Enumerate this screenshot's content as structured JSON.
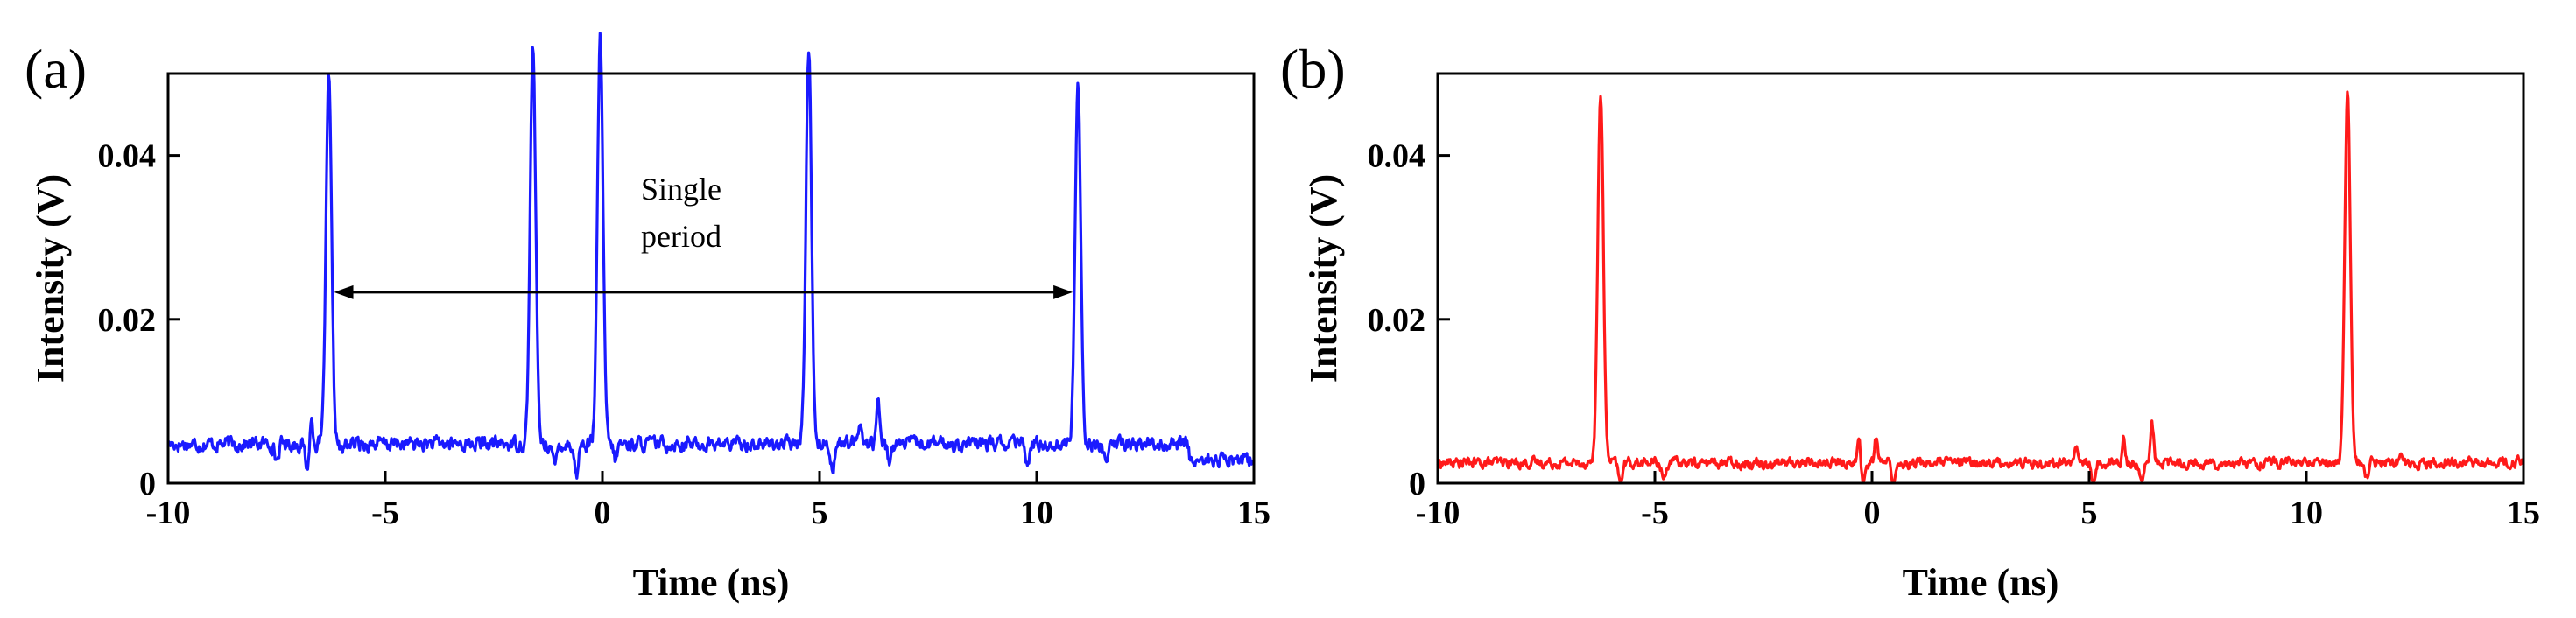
{
  "chart_data": [
    {
      "type": "line",
      "panel_label": "(a)",
      "xlabel": "Time (ns)",
      "ylabel": "Intensity (V)",
      "xlim": [
        -10,
        15
      ],
      "ylim": [
        0,
        0.05
      ],
      "xticks": [
        -10,
        -5,
        0,
        5,
        10,
        15
      ],
      "xtick_labels": [
        "-10",
        "-5",
        "0",
        "5",
        "10",
        "15"
      ],
      "yticks": [
        0,
        0.02,
        0.04
      ],
      "ytick_labels": [
        "0",
        "0.02",
        "0.04"
      ],
      "color": "#1a1aff",
      "baseline": 0.0048,
      "baseline_after": 13.5,
      "baseline_late": 0.0028,
      "noise": 0.0007,
      "peaks": [
        {
          "x": -6.3,
          "height": 0.0445,
          "width": 0.09
        },
        {
          "x": -1.6,
          "height": 0.0483,
          "width": 0.09
        },
        {
          "x": -0.05,
          "height": 0.0495,
          "width": 0.09
        },
        {
          "x": 4.75,
          "height": 0.0483,
          "width": 0.09
        },
        {
          "x": 10.95,
          "height": 0.0447,
          "width": 0.09
        }
      ],
      "dips": [
        {
          "x": -7.5,
          "depth": 0.002
        },
        {
          "x": -6.8,
          "depth": 0.003
        },
        {
          "x": -6.0,
          "depth": 0.001
        },
        {
          "x": -1.1,
          "depth": 0.003
        },
        {
          "x": -0.6,
          "depth": 0.004
        },
        {
          "x": 0.3,
          "depth": 0.002
        },
        {
          "x": 5.3,
          "depth": 0.003
        },
        {
          "x": 6.6,
          "depth": 0.002
        },
        {
          "x": 9.8,
          "depth": 0.0025
        },
        {
          "x": 11.6,
          "depth": 0.003
        }
      ],
      "bumps": [
        {
          "x": 6.35,
          "height": 0.0055
        },
        {
          "x": 5.95,
          "height": 0.003
        },
        {
          "x": -6.7,
          "height": 0.003
        }
      ],
      "annotation": {
        "text_line1": "Single",
        "text_line2": "period",
        "arrow_from_x": -6.3,
        "arrow_to_x": 10.95,
        "arrow_y": 0.0233
      }
    },
    {
      "type": "line",
      "panel_label": "(b)",
      "xlabel": "Time (ns)",
      "ylabel": "Intensity (V)",
      "xlim": [
        -10,
        15
      ],
      "ylim": [
        0,
        0.05
      ],
      "xticks": [
        -10,
        -5,
        0,
        5,
        10,
        15
      ],
      "xtick_labels": [
        "-10",
        "-5",
        "0",
        "5",
        "10",
        "15"
      ],
      "yticks": [
        0,
        0.02,
        0.04
      ],
      "ytick_labels": [
        "0",
        "0.02",
        "0.04"
      ],
      "color": "#ff1a1a",
      "baseline": 0.0025,
      "baseline_after": 99,
      "baseline_late": 0.0025,
      "noise": 0.0005,
      "peaks": [
        {
          "x": -6.25,
          "height": 0.0453,
          "width": 0.09
        },
        {
          "x": 10.95,
          "height": 0.0455,
          "width": 0.09
        }
      ],
      "dips": [
        {
          "x": -5.8,
          "depth": 0.0025
        },
        {
          "x": -4.8,
          "depth": 0.002
        },
        {
          "x": -0.2,
          "depth": 0.0025
        },
        {
          "x": 0.5,
          "depth": 0.0025
        },
        {
          "x": 5.1,
          "depth": 0.002
        },
        {
          "x": 6.2,
          "depth": 0.0025
        },
        {
          "x": 11.4,
          "depth": 0.002
        }
      ],
      "bumps": [
        {
          "x": -0.3,
          "height": 0.003
        },
        {
          "x": 0.1,
          "height": 0.003
        },
        {
          "x": 5.8,
          "height": 0.003
        },
        {
          "x": 6.45,
          "height": 0.0045
        },
        {
          "x": 4.7,
          "height": 0.002
        },
        {
          "x": 12.2,
          "height": 0.0015
        }
      ]
    }
  ]
}
